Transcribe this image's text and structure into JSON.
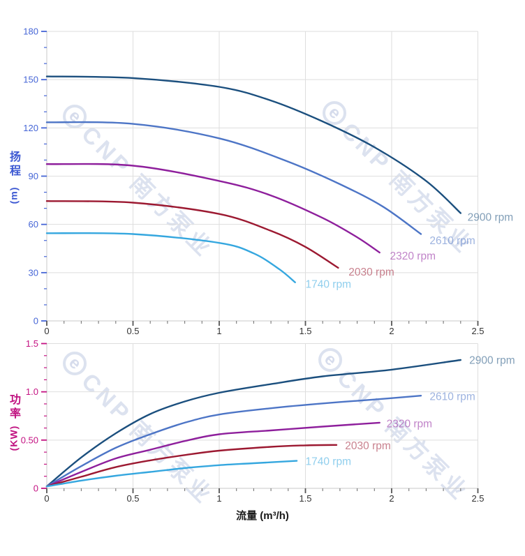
{
  "watermark": {
    "logo": "e",
    "text": "CNP 南方泵业"
  },
  "x_axis": {
    "title": "流量 (m³/h)",
    "min": 0,
    "max": 2.5,
    "major_step": 0.5,
    "minor_step": 0.1,
    "color": "#333333",
    "ticks": [
      {
        "v": 0,
        "label": "0"
      },
      {
        "v": 0.5,
        "label": "0.5"
      },
      {
        "v": 1,
        "label": "1"
      },
      {
        "v": 1.5,
        "label": "1.5"
      },
      {
        "v": 2,
        "label": "2"
      },
      {
        "v": 2.5,
        "label": "2.5"
      }
    ]
  },
  "chart_data": [
    {
      "id": "head",
      "type": "line",
      "title_cjk": "扬程",
      "y_axis": {
        "title_cjk": "扬程",
        "title_unit": "(m)",
        "min": 0,
        "max": 180,
        "major_step": 30,
        "minor_step": 10,
        "color": "#4565d6",
        "ticks": [
          {
            "v": 0,
            "label": "0"
          },
          {
            "v": 30,
            "label": "30"
          },
          {
            "v": 60,
            "label": "60"
          },
          {
            "v": 90,
            "label": "90"
          },
          {
            "v": 120,
            "label": "120"
          },
          {
            "v": 150,
            "label": "150"
          },
          {
            "v": 180,
            "label": "180"
          }
        ]
      },
      "series": [
        {
          "name": "2900 rpm",
          "color": "#1b4f7e",
          "label_at": [
            2.44,
            64.5
          ],
          "points": [
            [
              0,
              152
            ],
            [
              0.5,
              151
            ],
            [
              1.0,
              145.5
            ],
            [
              1.3,
              137
            ],
            [
              1.6,
              124
            ],
            [
              1.9,
              108
            ],
            [
              2.2,
              87
            ],
            [
              2.4,
              67
            ]
          ]
        },
        {
          "name": "2610 rpm",
          "color": "#4d75c6",
          "label_at": [
            2.22,
            50
          ],
          "points": [
            [
              0,
              123.5
            ],
            [
              0.5,
              122.5
            ],
            [
              1.0,
              113.5
            ],
            [
              1.4,
              99
            ],
            [
              1.7,
              85
            ],
            [
              1.95,
              71
            ],
            [
              2.17,
              54
            ]
          ]
        },
        {
          "name": "2320 rpm",
          "color": "#8e1f9c",
          "label_at": [
            1.99,
            40.5
          ],
          "points": [
            [
              0,
              97.5
            ],
            [
              0.5,
              96.5
            ],
            [
              1.0,
              87
            ],
            [
              1.3,
              78
            ],
            [
              1.6,
              64
            ],
            [
              1.8,
              52
            ],
            [
              1.93,
              42.5
            ]
          ]
        },
        {
          "name": "2030 rpm",
          "color": "#9c1931",
          "label_at": [
            1.75,
            30.5
          ],
          "points": [
            [
              0,
              74.5
            ],
            [
              0.5,
              73.5
            ],
            [
              1.0,
              66.5
            ],
            [
              1.3,
              56
            ],
            [
              1.5,
              46
            ],
            [
              1.69,
              33
            ]
          ]
        },
        {
          "name": "1740 rpm",
          "color": "#35a7df",
          "label_at": [
            1.5,
            23
          ],
          "points": [
            [
              0,
              54.5
            ],
            [
              0.5,
              54
            ],
            [
              1.0,
              48.5
            ],
            [
              1.2,
              42
            ],
            [
              1.35,
              32
            ],
            [
              1.44,
              24
            ]
          ]
        }
      ]
    },
    {
      "id": "power",
      "type": "line",
      "title_cjk": "功率",
      "y_axis": {
        "title_cjk": "功率",
        "title_unit": "(KW)",
        "min": 0,
        "max": 1.5,
        "major_step": 0.5,
        "minor_step": 0.125,
        "color": "#c41282",
        "ticks": [
          {
            "v": 0,
            "label": "0"
          },
          {
            "v": 0.5,
            "label": "0.50"
          },
          {
            "v": 1,
            "label": "1.0"
          },
          {
            "v": 1.5,
            "label": "1.5"
          }
        ]
      },
      "series": [
        {
          "name": "2900 rpm",
          "color": "#1b4f7e",
          "label_at": [
            2.45,
            1.33
          ],
          "points": [
            [
              0,
              0.02
            ],
            [
              0.2,
              0.32
            ],
            [
              0.4,
              0.57
            ],
            [
              0.6,
              0.77
            ],
            [
              0.8,
              0.9
            ],
            [
              1.0,
              0.99
            ],
            [
              1.3,
              1.08
            ],
            [
              1.6,
              1.16
            ],
            [
              2.0,
              1.23
            ],
            [
              2.4,
              1.33
            ]
          ]
        },
        {
          "name": "2610 rpm",
          "color": "#4d75c6",
          "label_at": [
            2.22,
            0.955
          ],
          "points": [
            [
              0,
              0.02
            ],
            [
              0.2,
              0.23
            ],
            [
              0.4,
              0.42
            ],
            [
              0.6,
              0.56
            ],
            [
              0.8,
              0.68
            ],
            [
              1.0,
              0.765
            ],
            [
              1.3,
              0.83
            ],
            [
              1.6,
              0.88
            ],
            [
              1.9,
              0.92
            ],
            [
              2.17,
              0.96
            ]
          ]
        },
        {
          "name": "2320 rpm",
          "color": "#8e1f9c",
          "label_at": [
            1.97,
            0.67
          ],
          "points": [
            [
              0,
              0.02
            ],
            [
              0.2,
              0.17
            ],
            [
              0.4,
              0.31
            ],
            [
              0.6,
              0.4
            ],
            [
              0.8,
              0.49
            ],
            [
              1.0,
              0.56
            ],
            [
              1.3,
              0.6
            ],
            [
              1.6,
              0.64
            ],
            [
              1.93,
              0.68
            ]
          ]
        },
        {
          "name": "2030 rpm",
          "color": "#9c1931",
          "label_at": [
            1.73,
            0.445
          ],
          "points": [
            [
              0,
              0.02
            ],
            [
              0.2,
              0.12
            ],
            [
              0.4,
              0.22
            ],
            [
              0.6,
              0.29
            ],
            [
              0.8,
              0.345
            ],
            [
              1.0,
              0.39
            ],
            [
              1.3,
              0.43
            ],
            [
              1.5,
              0.445
            ],
            [
              1.68,
              0.45
            ]
          ]
        },
        {
          "name": "1740 rpm",
          "color": "#35a7df",
          "label_at": [
            1.5,
            0.28
          ],
          "points": [
            [
              0,
              0.02
            ],
            [
              0.2,
              0.08
            ],
            [
              0.4,
              0.13
            ],
            [
              0.6,
              0.17
            ],
            [
              0.8,
              0.21
            ],
            [
              1.0,
              0.24
            ],
            [
              1.2,
              0.26
            ],
            [
              1.45,
              0.285
            ]
          ]
        }
      ]
    }
  ],
  "style": {
    "grid_color": "#dedede",
    "axis_line_color": "#c8c8c8",
    "x_tick_color": "#555555",
    "x_label_color": "#333333",
    "series_label_opacity": 0.55,
    "watermark_color": "#a3b2d4"
  }
}
